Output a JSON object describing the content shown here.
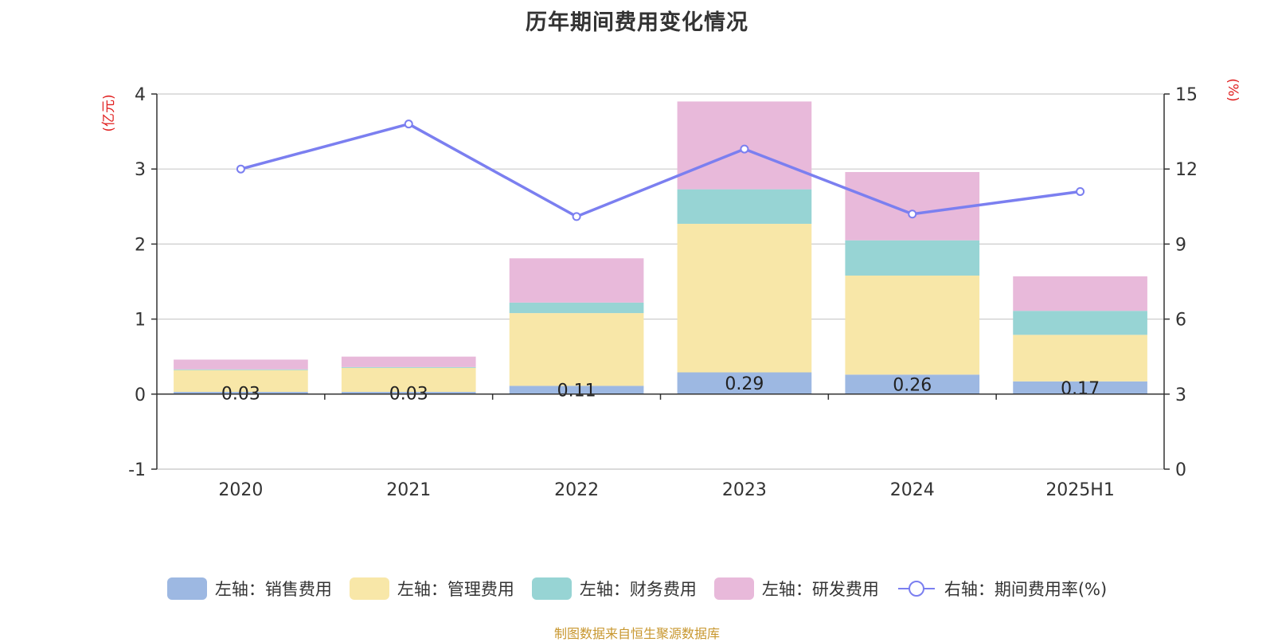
{
  "chart_data": {
    "type": "bar",
    "title": "历年期间费用变化情况",
    "categories": [
      "2020",
      "2021",
      "2022",
      "2023",
      "2024",
      "2025H1"
    ],
    "left_axis": {
      "unit_label": "(亿元)",
      "ylim": [
        -1,
        4
      ],
      "ticks": [
        -1,
        0,
        1,
        2,
        3,
        4
      ]
    },
    "right_axis": {
      "unit_label": "(%)",
      "ylim": [
        0,
        15
      ],
      "ticks": [
        0,
        3,
        6,
        9,
        12,
        15
      ]
    },
    "series": [
      {
        "name": "左轴：销售费用",
        "type": "bar",
        "axis": "left",
        "color": "#9db8e2",
        "values": [
          0.03,
          0.03,
          0.11,
          0.29,
          0.26,
          0.17
        ],
        "labels": [
          "0.03",
          "0.03",
          "0.11",
          "0.29",
          "0.26",
          "0.17"
        ]
      },
      {
        "name": "左轴：管理费用",
        "type": "bar",
        "axis": "left",
        "color": "#f8e7a8",
        "values": [
          0.29,
          0.32,
          0.97,
          1.98,
          1.32,
          0.62
        ]
      },
      {
        "name": "左轴：财务费用",
        "type": "bar",
        "axis": "left",
        "color": "#97d4d4",
        "values": [
          0.01,
          0.01,
          0.14,
          0.46,
          0.47,
          0.32
        ]
      },
      {
        "name": "左轴：研发费用",
        "type": "bar",
        "axis": "left",
        "color": "#e8b9da",
        "values": [
          0.13,
          0.14,
          0.59,
          1.17,
          0.91,
          0.46
        ]
      },
      {
        "name": "右轴：期间费用率(%)",
        "type": "line",
        "axis": "right",
        "color": "#7b7ff0",
        "values": [
          12.0,
          13.8,
          10.1,
          12.8,
          10.2,
          11.1
        ]
      }
    ],
    "grid": true,
    "legend_position": "bottom-center"
  },
  "source_note": "制图数据来自恒生聚源数据库"
}
